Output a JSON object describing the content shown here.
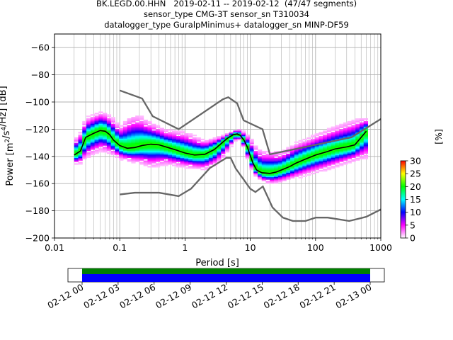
{
  "chart_data": {
    "type": "heatmap",
    "title_lines": [
      "BK.LEGD.00.HHN   2019-02-11 -- 2019-02-12  (47/47 segments)",
      "sensor_type CMG-3T sensor_sn T310034",
      "datalogger_type GuralpMinimus+ datalogger_sn MINP-DF59"
    ],
    "xlabel": "Period [s]",
    "ylabel": "Power [m²/s⁴/Hz] [dB]",
    "x_scale": "log",
    "xlim": [
      0.01,
      1000
    ],
    "ylim": [
      -200,
      -50
    ],
    "x_ticks": [
      0.01,
      0.1,
      1,
      10,
      100,
      1000
    ],
    "x_tick_labels": [
      "0.01",
      "0.1",
      "1",
      "10",
      "100",
      "1000"
    ],
    "y_ticks": [
      -200,
      -180,
      -160,
      -140,
      -120,
      -100,
      -80,
      -60
    ],
    "grid": true,
    "colorbar": {
      "label": "[%]",
      "range": [
        0,
        30
      ],
      "ticks": [
        0,
        5,
        10,
        15,
        20,
        25,
        30
      ],
      "colors": [
        "#ffffff",
        "#ff00ff",
        "#0000ff",
        "#00ffff",
        "#00ff00",
        "#ffff00",
        "#ff0000"
      ]
    },
    "nhnm": {
      "name": "NHNM",
      "periods": [
        0.1,
        0.22,
        0.32,
        0.8,
        3.8,
        4.6,
        6.3,
        7.9,
        15.4,
        20,
        354.8,
        1000
      ],
      "values": [
        -91.5,
        -97.4,
        -110.5,
        -120,
        -98,
        -96.5,
        -101,
        -113.5,
        -120,
        -138.5,
        -126,
        -112.5
      ]
    },
    "nlnm": {
      "name": "NLNM",
      "periods": [
        0.1,
        0.17,
        0.4,
        0.8,
        1.24,
        2.4,
        4.3,
        5,
        6,
        10,
        12,
        15.6,
        21.9,
        31.6,
        45,
        70,
        101,
        154,
        328,
        600,
        1000
      ],
      "values": [
        -168,
        -166.7,
        -166.7,
        -169.2,
        -163.7,
        -148.6,
        -141.1,
        -141.1,
        -149,
        -163.8,
        -166.2,
        -162.1,
        -177.5,
        -185,
        -187.5,
        -187.5,
        -185,
        -185,
        -187.5,
        -184.4,
        -179
      ]
    },
    "mode": {
      "name": "mode",
      "periods": [
        0.02,
        0.025,
        0.03,
        0.04,
        0.05,
        0.06,
        0.07,
        0.08,
        0.1,
        0.13,
        0.17,
        0.22,
        0.3,
        0.4,
        0.55,
        0.75,
        1,
        1.4,
        2,
        2.8,
        3.5,
        4.5,
        5.5,
        6.3,
        7,
        8,
        9,
        10,
        11,
        12.5,
        15,
        20,
        25,
        30,
        40,
        50,
        70,
        100,
        150,
        200,
        300,
        400,
        500,
        600
      ],
      "values": [
        -139,
        -136,
        -126,
        -123,
        -121,
        -121.5,
        -124,
        -128,
        -132,
        -134,
        -133.5,
        -132,
        -131,
        -131.5,
        -133.5,
        -135.5,
        -137.5,
        -139,
        -138.5,
        -135,
        -131,
        -126.5,
        -124,
        -123.5,
        -124.5,
        -128,
        -133,
        -139.5,
        -145,
        -150,
        -152,
        -152.5,
        -151.5,
        -150,
        -147.5,
        -145,
        -142,
        -139,
        -136.5,
        -134.5,
        -133,
        -131.5,
        -126,
        -121.5
      ]
    },
    "pdf_band": {
      "periods": [
        0.02,
        0.025,
        0.03,
        0.04,
        0.05,
        0.06,
        0.08,
        0.1,
        0.15,
        0.2,
        0.3,
        0.5,
        1,
        2,
        3,
        4,
        5,
        6,
        7,
        8,
        10,
        12,
        15,
        20,
        30,
        50,
        100,
        200,
        300,
        500,
        630
      ],
      "upper": [
        -128,
        -122,
        -112,
        -109,
        -107,
        -108,
        -112,
        -118,
        -110,
        -110,
        -115,
        -120,
        -122,
        -128,
        -126,
        -124,
        -122,
        -120,
        -120,
        -122,
        -126,
        -132,
        -136,
        -136,
        -137,
        -130,
        -124,
        -118,
        -115,
        -112,
        -112
      ],
      "lower": [
        -146,
        -145,
        -142,
        -138,
        -136,
        -137,
        -139,
        -142,
        -144,
        -145,
        -148,
        -146,
        -148,
        -150,
        -146,
        -140,
        -133,
        -128,
        -128,
        -134,
        -148,
        -154,
        -158,
        -160,
        -159,
        -156,
        -152,
        -148,
        -145,
        -142,
        -141
      ]
    },
    "time_axis": {
      "tick_labels": [
        "02-12 00",
        "02-12 03",
        "02-12 06",
        "02-12 09",
        "02-12 12",
        "02-12 15",
        "02-12 18",
        "02-12 21",
        "02-13 00"
      ],
      "coverage_color": "#0000ff",
      "gap_color": "#008000"
    }
  }
}
